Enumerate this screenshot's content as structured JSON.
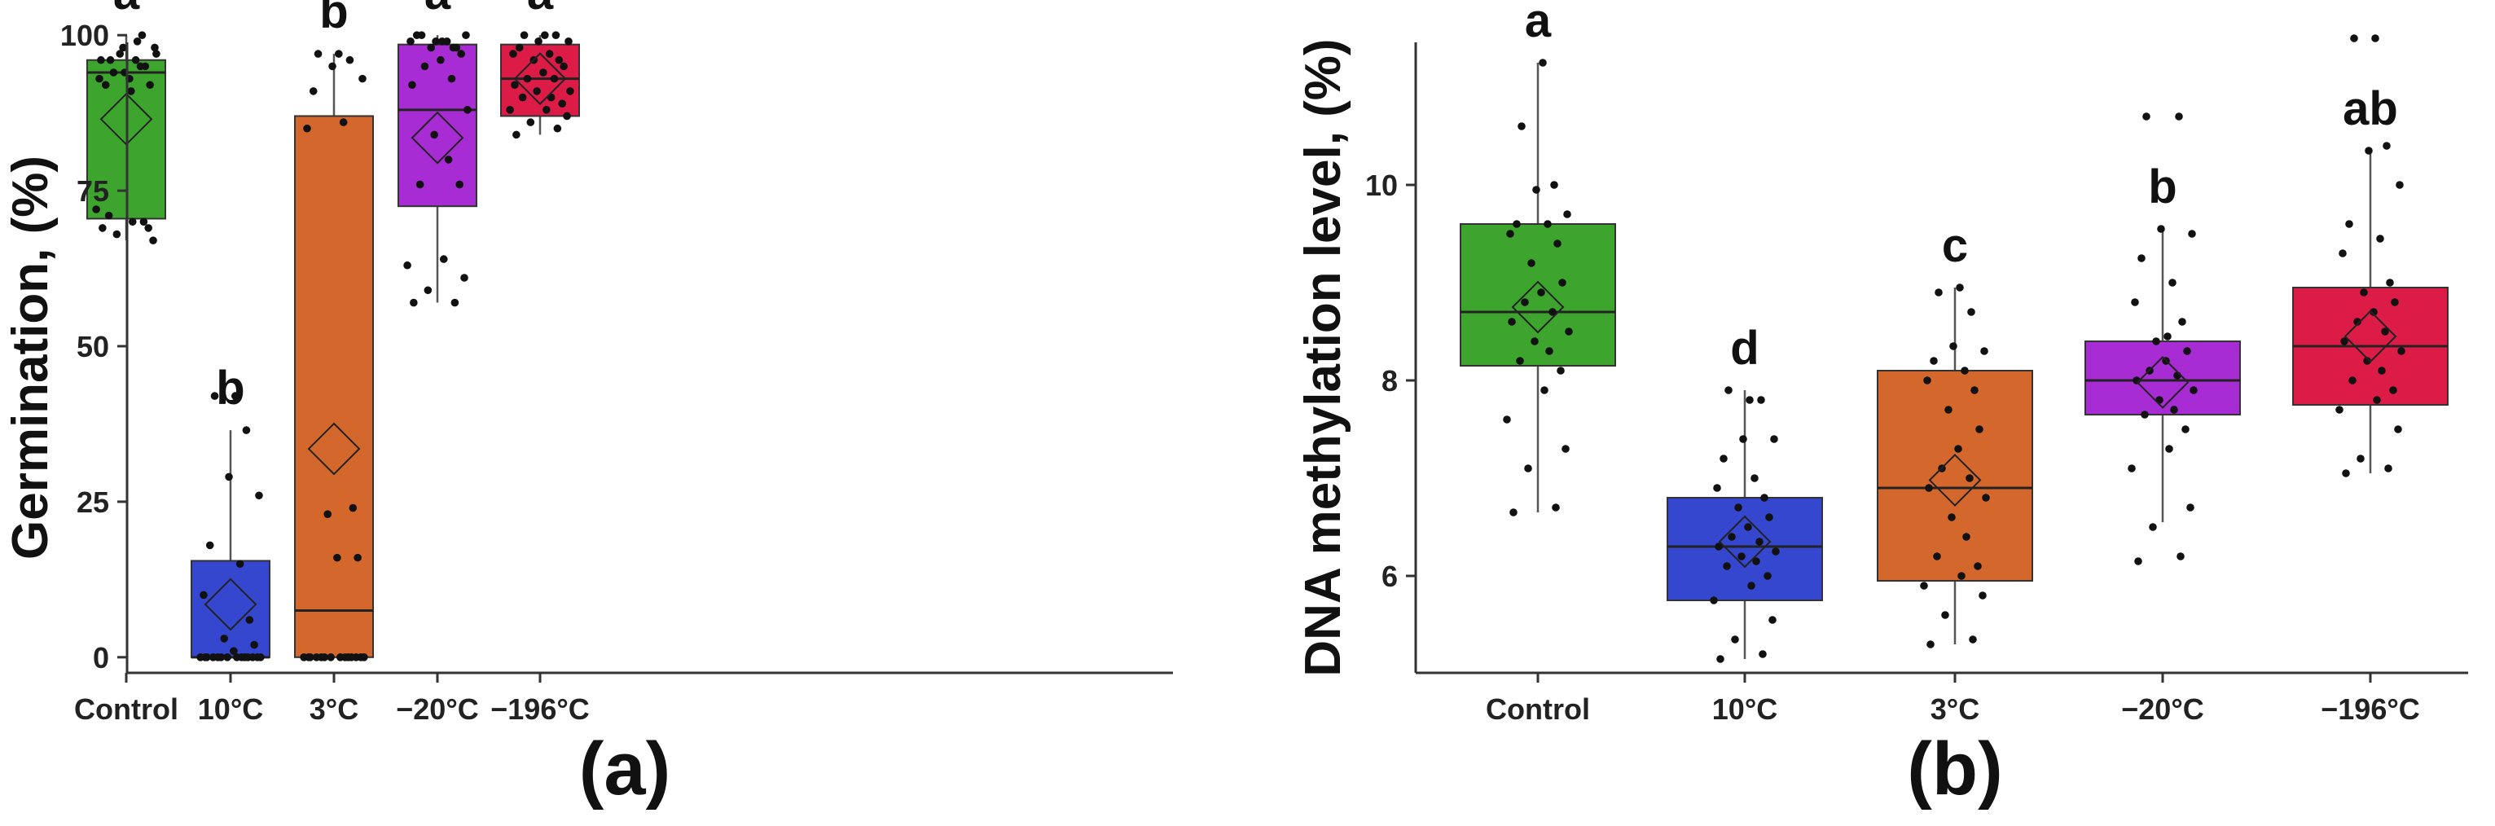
{
  "chart_data": [
    {
      "type": "box",
      "panel_label": "(a)",
      "title": "",
      "xlabel": "",
      "ylabel": "Germination, (%)",
      "ylim": [
        -5,
        105
      ],
      "yticks": [
        0,
        25,
        50,
        75,
        100
      ],
      "grid": false,
      "colors": [
        "#3da52e",
        "#3547cf",
        "#d4682c",
        "#a72cd3",
        "#dc1b46"
      ],
      "categories": [
        "Control",
        "10°C",
        "3°C",
        "−20°C",
        "−196°C"
      ],
      "letters": [
        "a",
        "b",
        "b",
        "a",
        "a"
      ],
      "boxes": [
        {
          "whisker_low": 67,
          "q1": 70.5,
          "median": 94,
          "q3": 96,
          "whisker_high": 100,
          "mean": 86.5
        },
        {
          "whisker_low": 0,
          "q1": 0,
          "median": 0,
          "q3": 15.5,
          "whisker_high": 36.5,
          "mean": 8.5
        },
        {
          "whisker_low": 0,
          "q1": 0,
          "median": 7.5,
          "q3": 87,
          "whisker_high": 97,
          "mean": 33.5
        },
        {
          "whisker_low": 57,
          "q1": 72.5,
          "median": 88,
          "q3": 98.5,
          "whisker_high": 100,
          "mean": 83.5
        },
        {
          "whisker_low": 84,
          "q1": 87,
          "median": 93,
          "q3": 98.5,
          "whisker_high": 100,
          "mean": 93
        }
      ],
      "points": [
        [
          69,
          70,
          68,
          67,
          72,
          70,
          69,
          71,
          99,
          98,
          97,
          96,
          95,
          94,
          93,
          92,
          97,
          95,
          93,
          96,
          92,
          98,
          94,
          100,
          96,
          91
        ],
        [
          0,
          0,
          0,
          0,
          0,
          0,
          0,
          0,
          0,
          0,
          0,
          0,
          0,
          0,
          1,
          2,
          3,
          6,
          10,
          15,
          18,
          26,
          29,
          36.5,
          42,
          42
        ],
        [
          0,
          0,
          0,
          0,
          0,
          0,
          0,
          0,
          0,
          0,
          0,
          0,
          0,
          0,
          16,
          16,
          23,
          24,
          85,
          86,
          91,
          93,
          95,
          96,
          97,
          97
        ],
        [
          57,
          57,
          59,
          61,
          63,
          64,
          76,
          76,
          80,
          84,
          88,
          92,
          93,
          95,
          96,
          97,
          98,
          98,
          99,
          99,
          100,
          100,
          99,
          98,
          100,
          99
        ],
        [
          84,
          85,
          86,
          87,
          88,
          88,
          89,
          90,
          90,
          91,
          91,
          92,
          93,
          93,
          94,
          95,
          96,
          96,
          97,
          97,
          98,
          99,
          99,
          100,
          100,
          100
        ]
      ]
    },
    {
      "type": "box",
      "panel_label": "(b)",
      "title": "",
      "xlabel": "",
      "ylabel": "DNA methylation level, (%)",
      "ylim": [
        4.85,
        11.85
      ],
      "yticks": [
        6,
        8,
        10
      ],
      "grid": false,
      "colors": [
        "#3da52e",
        "#3547cf",
        "#d4682c",
        "#a72cd3",
        "#dc1b46"
      ],
      "categories": [
        "Control",
        "10°C",
        "3°C",
        "−20°C",
        "−196°C"
      ],
      "letters": [
        "a",
        "d",
        "c",
        "b",
        "ab"
      ],
      "boxes": [
        {
          "whisker_low": 6.65,
          "q1": 8.15,
          "median": 8.7,
          "q3": 9.6,
          "whisker_high": 11.25,
          "mean": 8.75
        },
        {
          "whisker_low": 5.15,
          "q1": 5.75,
          "median": 6.3,
          "q3": 6.8,
          "whisker_high": 7.9,
          "mean": 6.35
        },
        {
          "whisker_low": 5.3,
          "q1": 5.95,
          "median": 6.9,
          "q3": 8.1,
          "whisker_high": 8.95,
          "mean": 6.98
        },
        {
          "whisker_low": 6.55,
          "q1": 7.65,
          "median": 8.0,
          "q3": 8.4,
          "whisker_high": 9.55,
          "mean": 7.98
        },
        {
          "whisker_low": 7.05,
          "q1": 7.75,
          "median": 8.35,
          "q3": 8.95,
          "whisker_high": 10.35,
          "mean": 8.45
        }
      ],
      "points": [
        [
          6.65,
          6.7,
          7.1,
          7.3,
          7.6,
          7.9,
          8.1,
          8.2,
          8.3,
          8.4,
          8.5,
          8.6,
          8.7,
          8.8,
          8.9,
          9.0,
          9.2,
          9.4,
          9.5,
          9.6,
          9.6,
          9.7,
          9.95,
          10.0,
          10.6,
          11.25
        ],
        [
          5.15,
          5.2,
          5.35,
          5.55,
          5.75,
          5.9,
          6.0,
          6.1,
          6.15,
          6.2,
          6.25,
          6.3,
          6.35,
          6.4,
          6.5,
          6.6,
          6.7,
          6.8,
          6.9,
          7.0,
          7.2,
          7.4,
          7.4,
          7.8,
          7.9,
          7.8
        ],
        [
          5.3,
          5.35,
          5.6,
          5.8,
          5.9,
          6.0,
          6.1,
          6.2,
          6.4,
          6.6,
          6.8,
          6.9,
          7.0,
          7.1,
          7.3,
          7.5,
          7.7,
          7.9,
          8.0,
          8.1,
          8.2,
          8.3,
          8.35,
          8.7,
          8.9,
          8.95
        ],
        [
          6.15,
          6.2,
          6.5,
          6.7,
          7.1,
          7.3,
          7.5,
          7.65,
          7.7,
          7.8,
          7.9,
          8.0,
          8.05,
          8.1,
          8.2,
          8.3,
          8.4,
          8.6,
          8.8,
          9.0,
          9.25,
          9.5,
          9.55,
          10.7,
          10.7,
          8.45
        ],
        [
          7.05,
          7.1,
          7.2,
          7.5,
          7.7,
          7.8,
          7.9,
          8.0,
          8.1,
          8.2,
          8.3,
          8.4,
          8.5,
          8.6,
          8.7,
          8.8,
          8.9,
          9.0,
          9.3,
          9.45,
          9.6,
          10.0,
          10.35,
          10.4,
          11.5,
          11.5
        ]
      ]
    }
  ]
}
